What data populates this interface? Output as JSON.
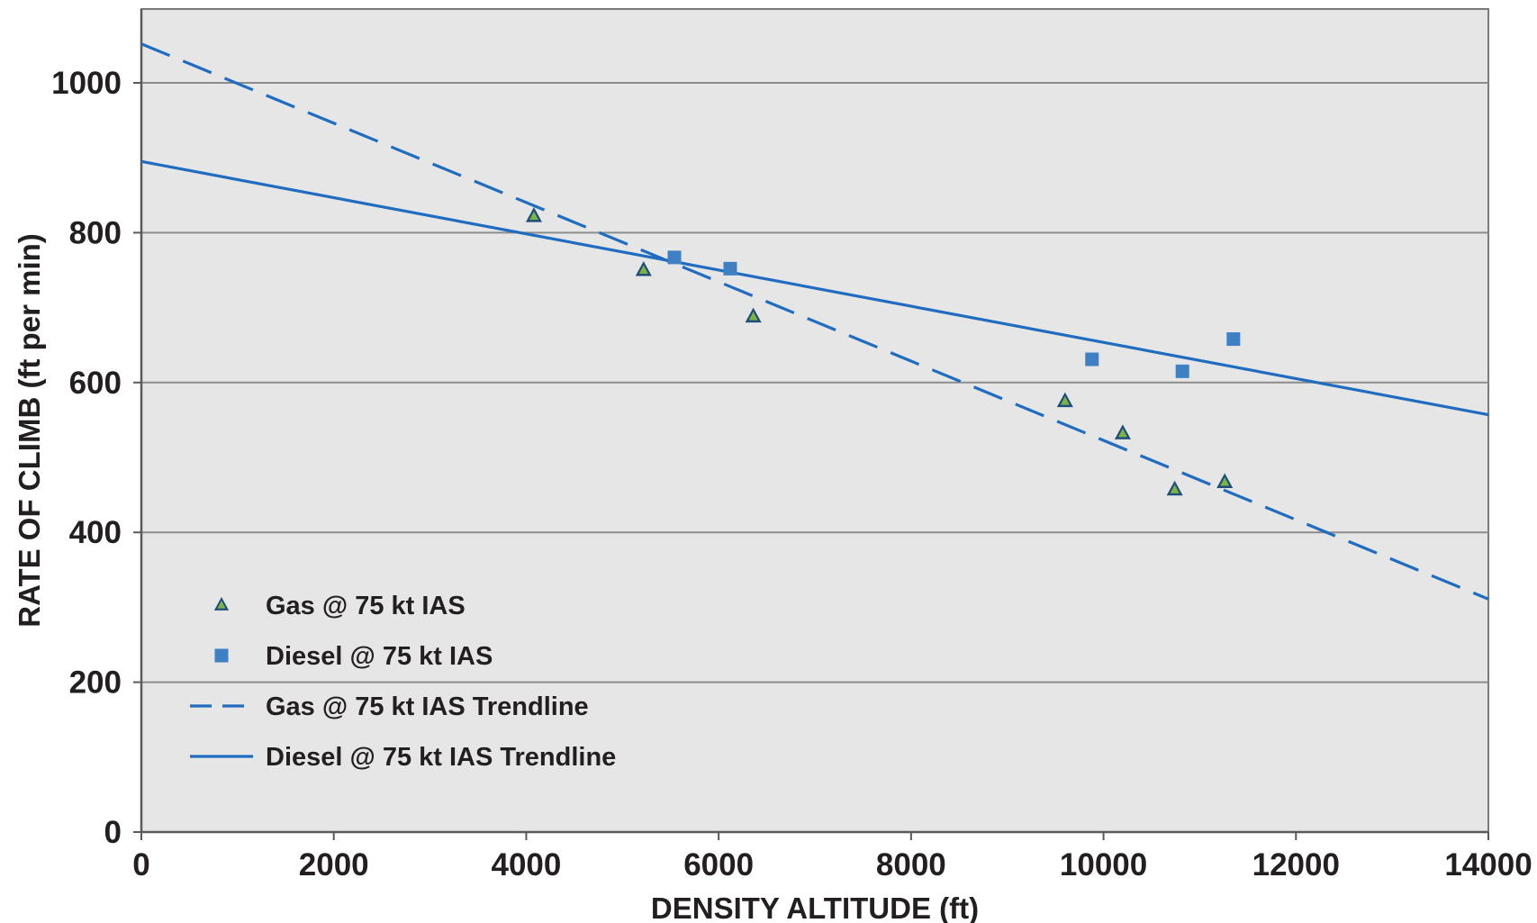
{
  "chart_data": {
    "type": "scatter",
    "title": "",
    "xlabel": "DENSITY ALTITUDE (ft)",
    "ylabel": "RATE OF CLIMB (ft per min)",
    "xlim": [
      0,
      14000
    ],
    "ylim": [
      0,
      1100
    ],
    "x_ticks": [
      0,
      2000,
      4000,
      6000,
      8000,
      10000,
      12000,
      14000
    ],
    "y_ticks": [
      0,
      200,
      400,
      600,
      800,
      1000
    ],
    "grid": "horizontal",
    "legend_position": "lower-left",
    "series": [
      {
        "name": "Gas @ 75 kt IAS",
        "marker": "triangle",
        "color": "#7cb342",
        "x": [
          4080,
          5220,
          6360,
          9600,
          10200,
          10740,
          11260
        ],
        "y": [
          822,
          750,
          688,
          575,
          532,
          457,
          467
        ]
      },
      {
        "name": "Diesel @ 75 kt IAS",
        "marker": "square",
        "color": "#3f7fc4",
        "x": [
          5540,
          6120,
          9880,
          10820,
          11350
        ],
        "y": [
          767,
          752,
          631,
          615,
          658
        ]
      },
      {
        "name": "Gas @ 75 kt IAS Trendline",
        "line_style": "dashed",
        "color": "#1f6cc0",
        "x": [
          0,
          14000
        ],
        "y": [
          1052,
          311
        ]
      },
      {
        "name": "Diesel @ 75 kt IAS Trendline",
        "line_style": "solid",
        "color": "#1f6cc0",
        "x": [
          0,
          14000
        ],
        "y": [
          895,
          557
        ]
      }
    ]
  }
}
